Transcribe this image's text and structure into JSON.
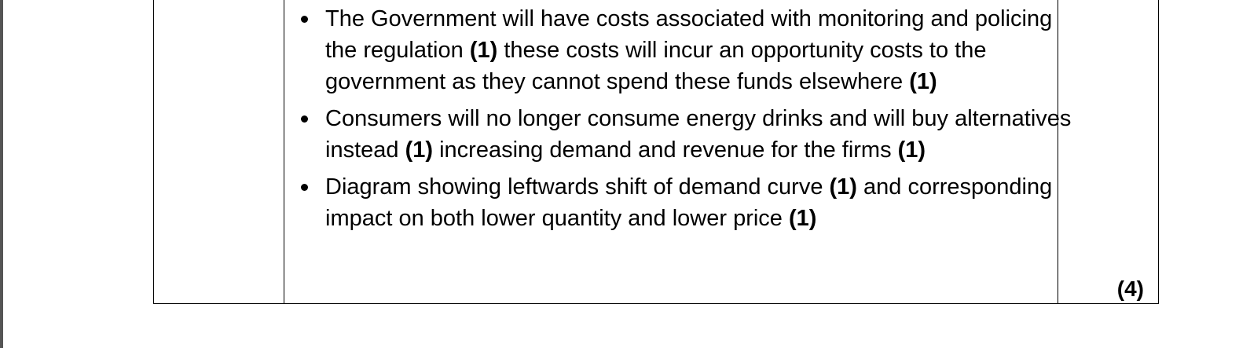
{
  "table": {
    "rows": [
      {
        "answer": [
          [
            {
              "text": "The Government will have costs associated with monitoring and policing the regulation ",
              "bold": false
            },
            {
              "text": "(1)",
              "bold": true
            },
            {
              "text": " these costs will incur an opportunity costs to the government as they cannot spend these funds elsewhere ",
              "bold": false
            },
            {
              "text": "(1)",
              "bold": true
            }
          ],
          [
            {
              "text": "Consumers will no longer consume energy drinks and will buy alternatives instead ",
              "bold": false
            },
            {
              "text": "(1)",
              "bold": true
            },
            {
              "text": " increasing demand and revenue for the firms ",
              "bold": false
            },
            {
              "text": "(1)",
              "bold": true
            }
          ],
          [
            {
              "text": "Diagram showing leftwards shift of demand curve ",
              "bold": false
            },
            {
              "text": "(1)",
              "bold": true
            },
            {
              "text": " and corresponding impact on both lower quantity and lower price ",
              "bold": false
            },
            {
              "text": "(1)",
              "bold": true
            }
          ]
        ],
        "marks": "(4)"
      }
    ]
  }
}
